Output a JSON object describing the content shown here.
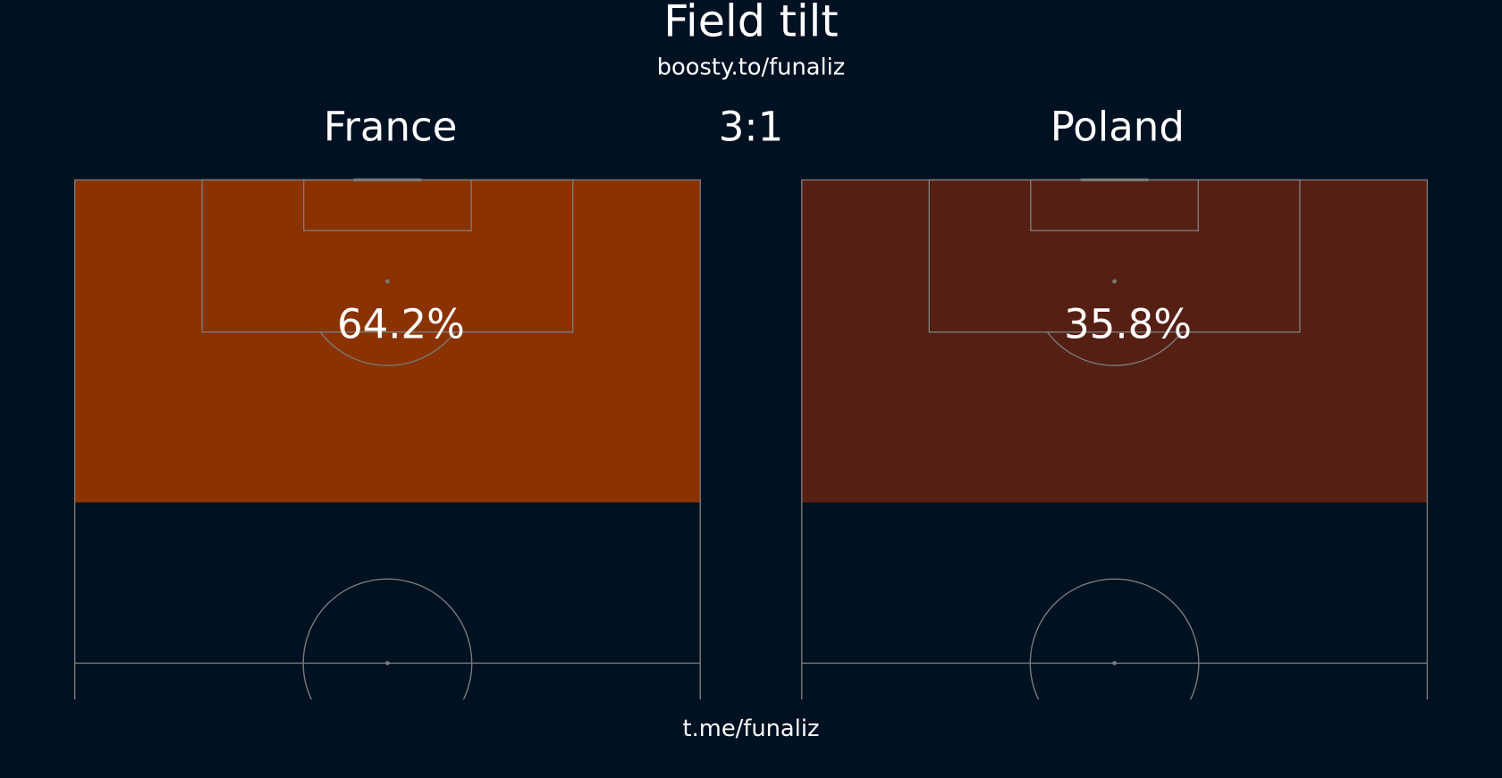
{
  "chart_data": {
    "type": "field-tilt",
    "title": "Field tilt",
    "subtitle": "boosty.to/funaliz",
    "score": "3:1",
    "footer": "t.me/funaliz",
    "series": [
      {
        "name": "France",
        "color": "#8a3300",
        "values": [
          64.2
        ],
        "value_labels": [
          "64.2%"
        ]
      },
      {
        "name": "Poland",
        "color": "#552013",
        "values": [
          35.8
        ],
        "value_labels": [
          "35.8%"
        ]
      }
    ]
  }
}
